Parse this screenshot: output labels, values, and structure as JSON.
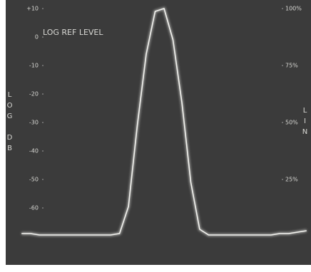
{
  "chart_data": {
    "type": "line",
    "annotation": "LOG REF LEVEL",
    "y_label": "LOG DB",
    "y2_label": "LIN",
    "categories": [
      null,
      null,
      null,
      null,
      null,
      null,
      null,
      null,
      null,
      null,
      null,
      null,
      null,
      null,
      null,
      null,
      null,
      null,
      null,
      null,
      null,
      null,
      null,
      null,
      null,
      null,
      null,
      null,
      null,
      null,
      null,
      null,
      null
    ],
    "series": [
      {
        "name": null,
        "color": "#f4f4f0",
        "values": [
          -69,
          -69,
          -69.5,
          -69.5,
          -69.5,
          -69.5,
          -69.5,
          -69.5,
          -69.5,
          -69.5,
          -69.5,
          -69,
          -59.5,
          -31,
          -6,
          9,
          10,
          -1,
          -23,
          -51,
          -67.5,
          -69.5,
          -69.5,
          -69.5,
          -69.5,
          -69.5,
          -69.5,
          -69.5,
          -69.5,
          -69,
          -69,
          -68.5,
          -68
        ]
      }
    ],
    "ylim": [
      -70,
      10
    ],
    "yticks": [
      {
        "value": 10,
        "label": "+10"
      },
      0,
      -10,
      -20,
      -30,
      -40,
      -50,
      -60
    ],
    "y2lim": [
      0,
      100
    ],
    "y2ticks": [
      {
        "value": 100,
        "label": "100%"
      },
      {
        "value": 75,
        "label": "75%"
      },
      {
        "value": 50,
        "label": "50%"
      },
      {
        "value": 25,
        "label": "25%"
      }
    ],
    "grid": false
  }
}
